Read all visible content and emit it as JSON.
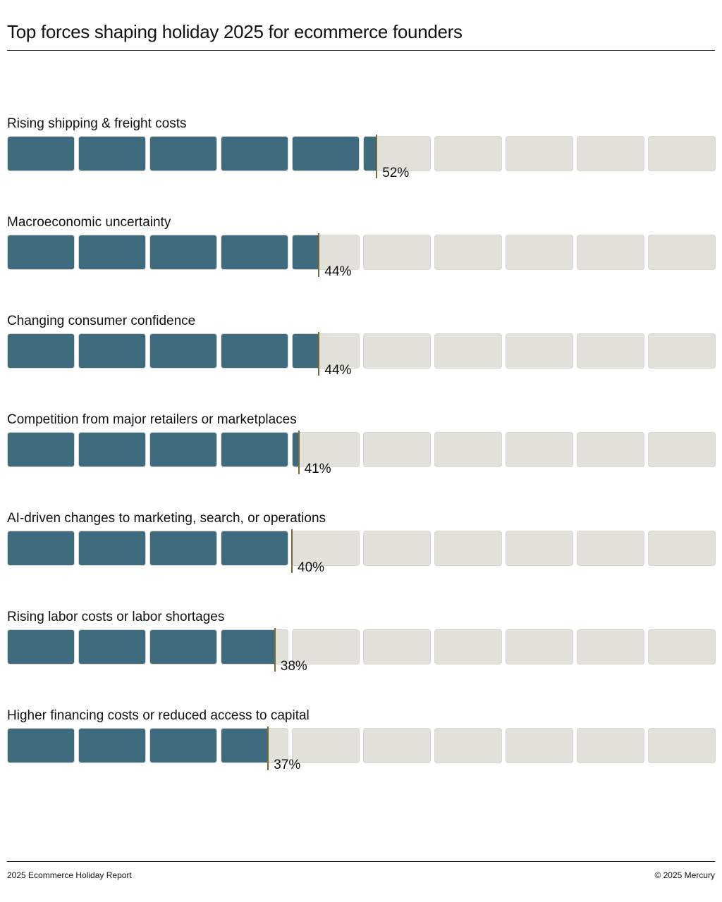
{
  "header": {
    "title": "Top forces shaping holiday 2025 for ecommerce founders"
  },
  "footer": {
    "left": "2025 Ecommerce Holiday Report",
    "right": "© 2025 Mercury"
  },
  "colors": {
    "filled": "#3f6b7e",
    "empty": "#e2e1da",
    "marker": "#7a6a32"
  },
  "chart_data": {
    "type": "bar",
    "orientation": "horizontal",
    "title": "Top forces shaping holiday 2025 for ecommerce founders",
    "xlim": [
      0,
      100
    ],
    "unit": "%",
    "categories": [
      "Rising shipping & freight costs",
      "Macroeconomic uncertainty",
      "Changing consumer confidence",
      "Competition from major retailers or marketplaces",
      "AI-driven changes to marketing, search, or operations",
      "Rising labor costs or labor shortages",
      "Higher financing costs or reduced access to capital"
    ],
    "values": [
      52,
      44,
      44,
      41,
      40,
      38,
      37
    ],
    "labels": [
      "52%",
      "44%",
      "44%",
      "41%",
      "40%",
      "38%",
      "37%"
    ]
  }
}
